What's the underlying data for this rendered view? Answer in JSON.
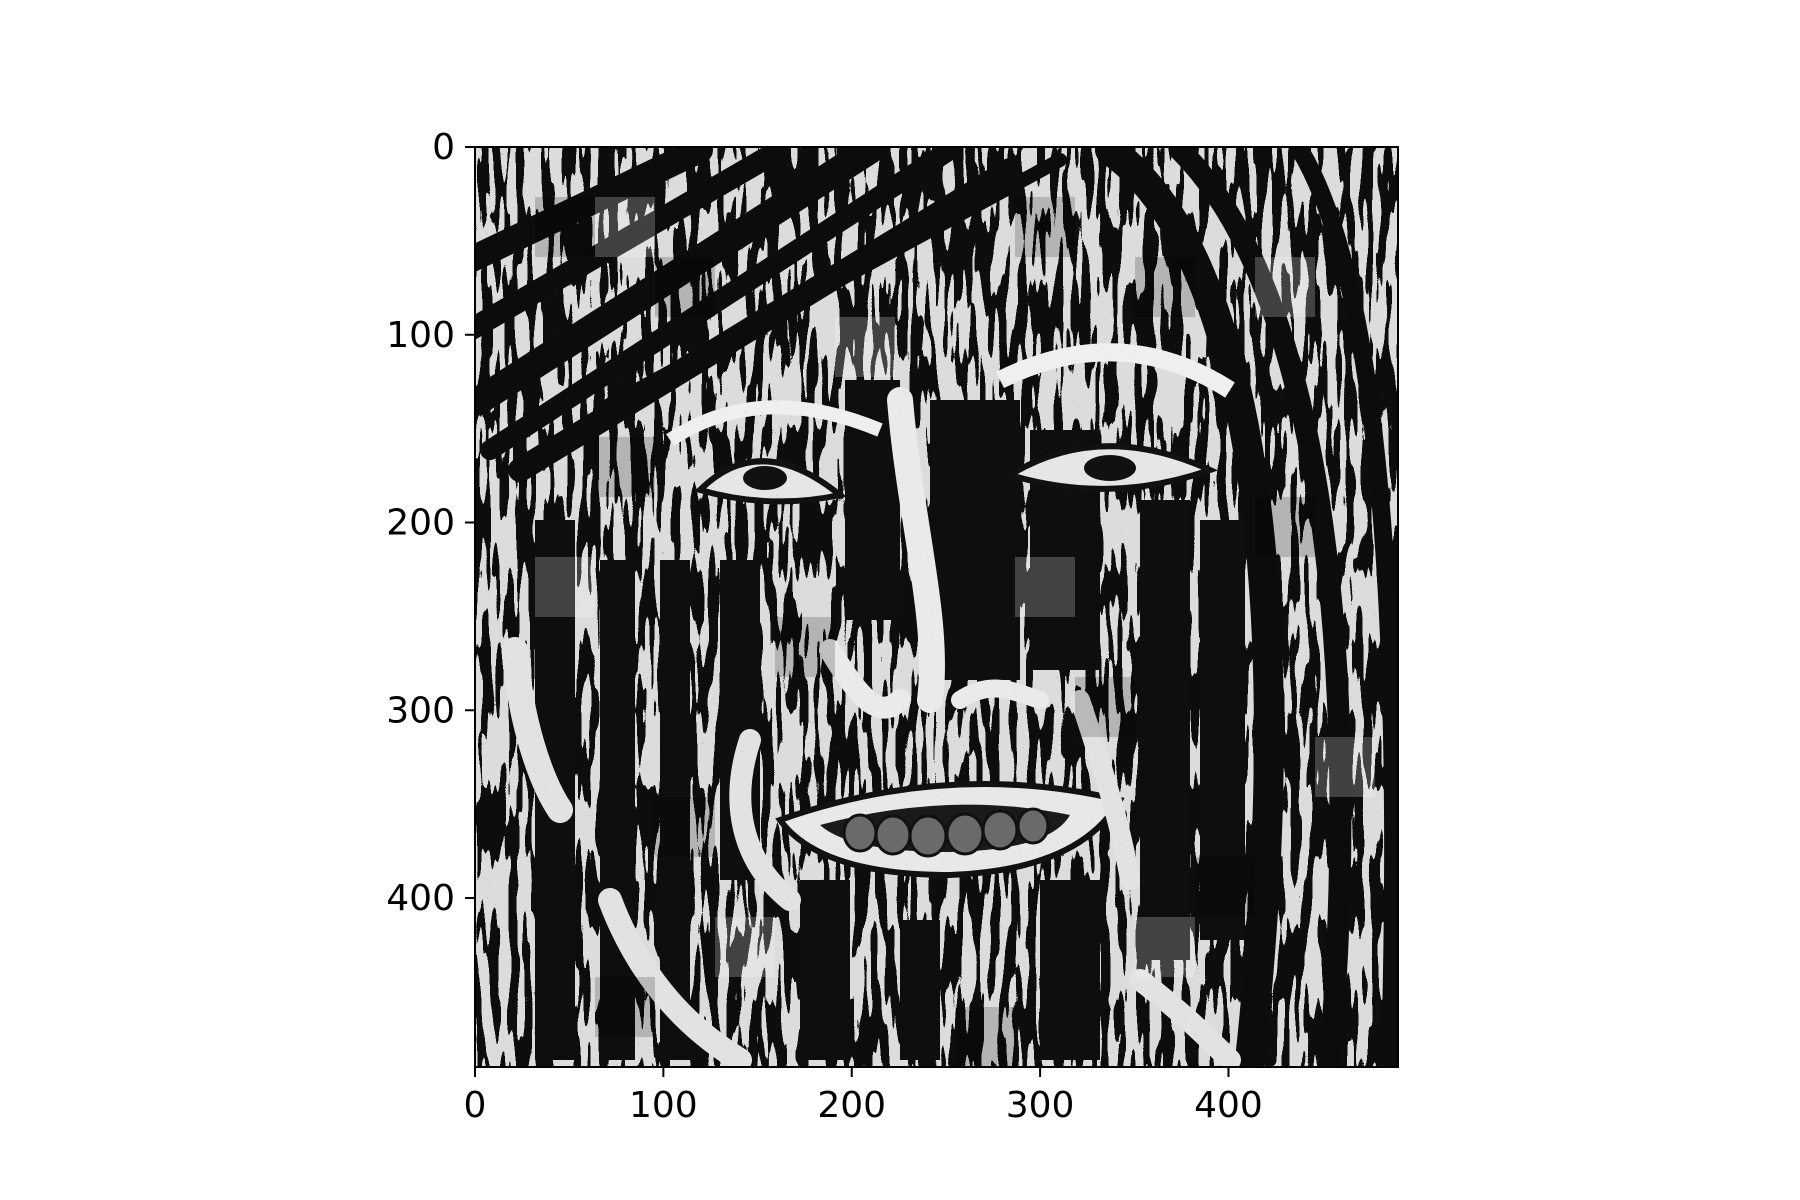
{
  "chart_data": {
    "type": "heatmap",
    "colormap": "gray",
    "image_description": "Grayscale image (processed, high-contrast, block-scrambled face with hair strands) displayed as a matrix",
    "title": "",
    "xlabel": "",
    "ylabel": "",
    "xlim": [
      0,
      490
    ],
    "ylim": [
      490,
      0
    ],
    "x_ticks": [
      0,
      100,
      200,
      300,
      400
    ],
    "y_ticks": [
      0,
      100,
      200,
      300,
      400
    ],
    "x_tick_labels": [
      "0",
      "100",
      "200",
      "300",
      "400"
    ],
    "y_tick_labels": [
      "0",
      "100",
      "200",
      "300",
      "400"
    ],
    "grid": false
  }
}
